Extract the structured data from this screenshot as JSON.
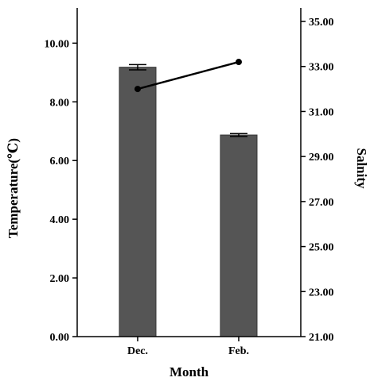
{
  "chart_data": {
    "type": "bar",
    "categories": [
      "Dec.",
      "Feb."
    ],
    "xlabel": "Month",
    "ylabel": "Temperature(℃)",
    "y2label": "Salnity",
    "ylim": [
      0,
      11.2
    ],
    "y2lim": [
      21,
      35.6
    ],
    "y_ticks": [
      "0.00",
      "2.00",
      "4.00",
      "6.00",
      "8.00",
      "10.00"
    ],
    "y2_ticks": [
      "21.00",
      "23.00",
      "25.00",
      "27.00",
      "29.00",
      "31.00",
      "33.00",
      "35.00"
    ],
    "grid": false,
    "legend": "none",
    "series": [
      {
        "kind": "bar",
        "axis": "left",
        "values": [
          9.18,
          6.87
        ],
        "error": [
          0.09,
          0.05
        ],
        "color": "#555555"
      },
      {
        "kind": "line",
        "axis": "right",
        "values": [
          32.0,
          33.2
        ],
        "color": "#000000"
      }
    ]
  }
}
